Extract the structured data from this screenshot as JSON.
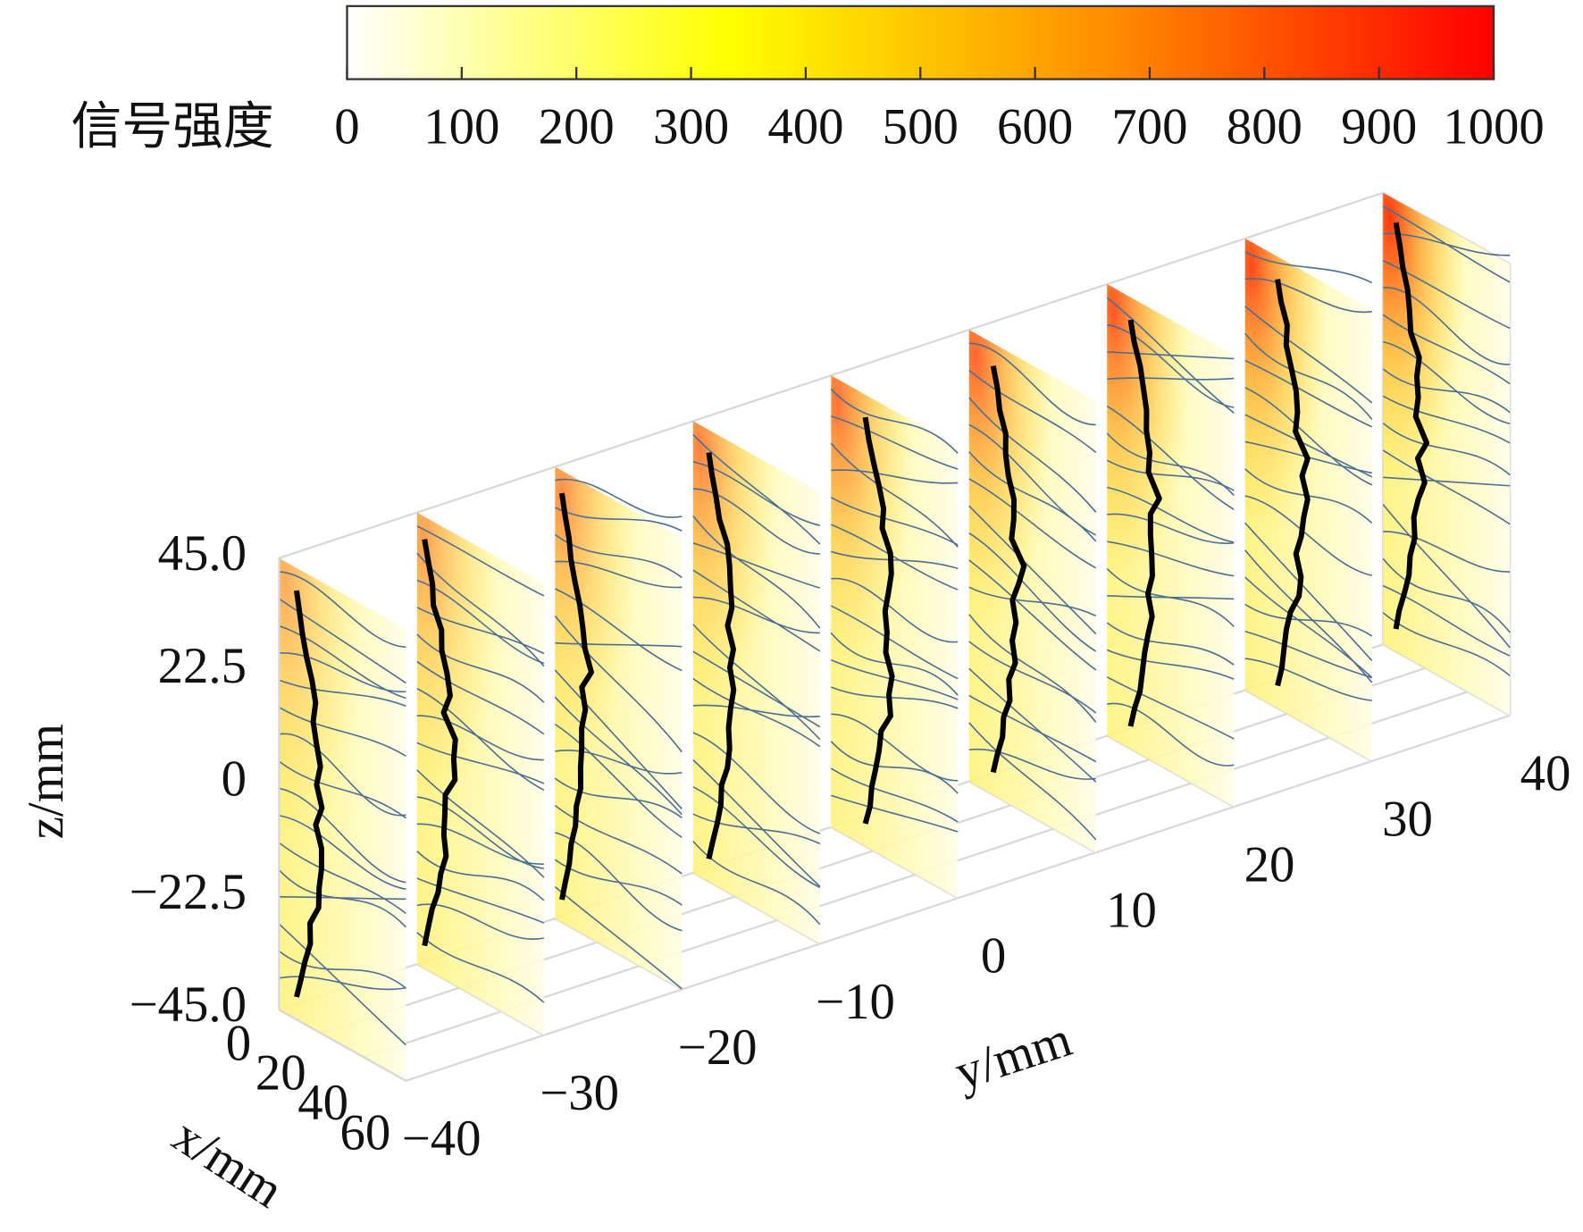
{
  "chart_data": {
    "type": "slices3d",
    "colorbar_label": "信号强度",
    "clim": [
      0,
      1000
    ],
    "cticks": [
      0,
      100,
      200,
      300,
      400,
      500,
      600,
      700,
      800,
      900,
      1000
    ],
    "colormap": [
      "#ffffff",
      "#ffff00",
      "#ff8c00",
      "#ff0000"
    ],
    "xlabel": "x/mm",
    "ylabel": "y/mm",
    "zlabel": "z/mm",
    "xlim": [
      0,
      60
    ],
    "xticks": [
      0,
      20,
      40,
      60
    ],
    "ylim": [
      -40,
      40
    ],
    "yticks": [
      {
        "value": -40,
        "label": "−40"
      },
      {
        "value": -30,
        "label": "−30"
      },
      {
        "value": -20,
        "label": "−20"
      },
      {
        "value": -10,
        "label": "−10"
      },
      0,
      10,
      20,
      30,
      40
    ],
    "zlim": [
      -45,
      45
    ],
    "zticks": [
      {
        "value": 45,
        "label": "45.0"
      },
      {
        "value": 22.5,
        "label": "22.5"
      },
      0,
      {
        "value": -22.5,
        "label": "−22.5"
      },
      {
        "value": -45,
        "label": "−45.0"
      }
    ],
    "streamline_color": "#4a6f96",
    "contour_color": "#000000"
  }
}
